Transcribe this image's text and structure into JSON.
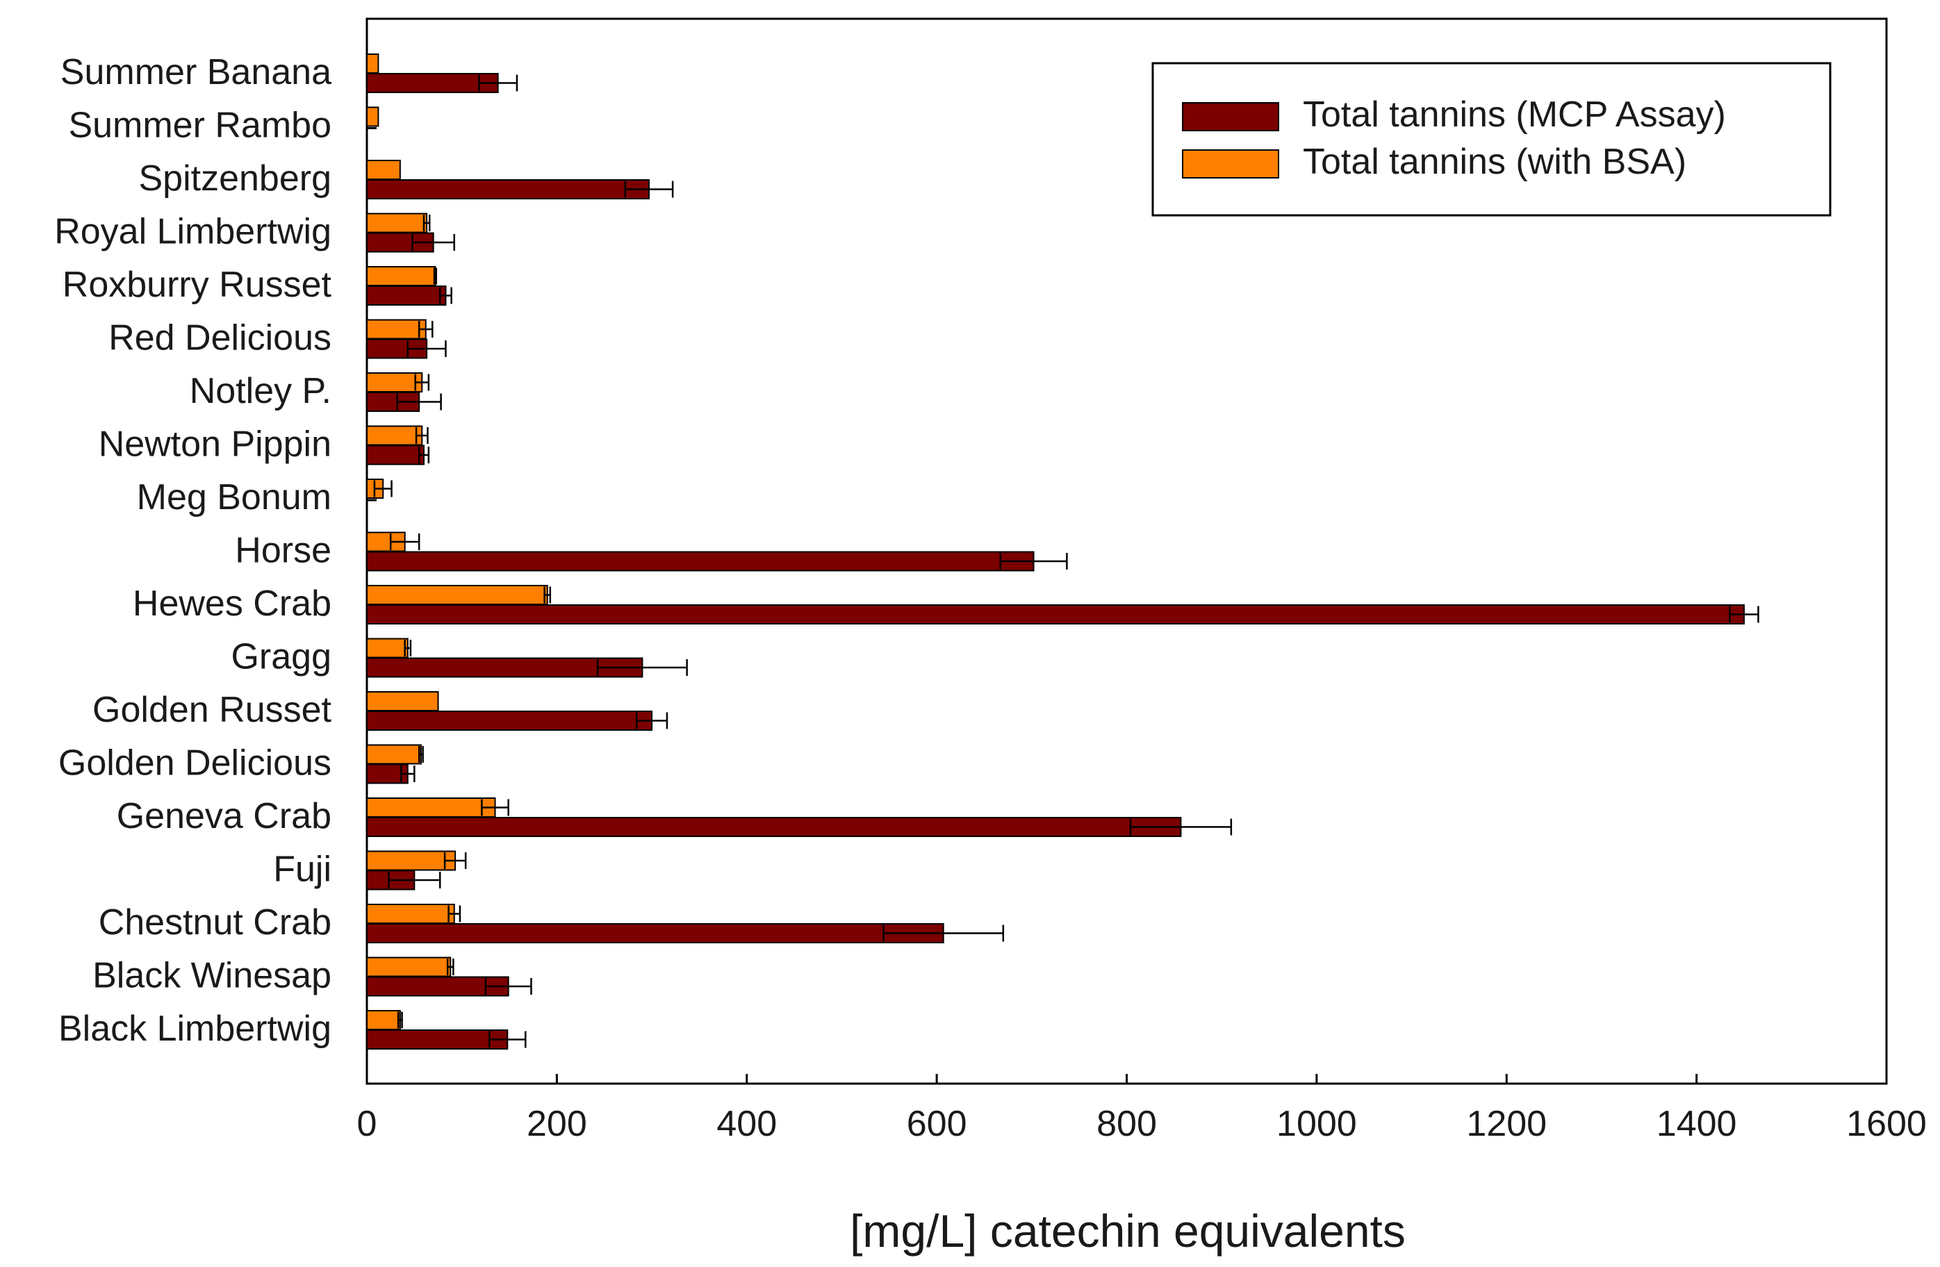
{
  "chart_data": {
    "type": "bar",
    "orientation": "horizontal",
    "title": "",
    "xlabel": "[mg/L] catechin equivalents",
    "ylabel": "",
    "xlim": [
      0,
      1600
    ],
    "xticks": [
      0,
      200,
      400,
      600,
      800,
      1000,
      1200,
      1400,
      1600
    ],
    "grid": false,
    "legend_position": "top-right",
    "categories": [
      "Summer Banana",
      "Summer Rambo",
      "Spitzenberg",
      "Royal Limbertwig",
      "Roxburry Russet",
      "Red Delicious",
      "Notley P.",
      "Newton Pippin",
      "Meg Bonum",
      "Horse",
      "Hewes Crab",
      "Gragg",
      "Golden Russet",
      "Golden Delicious",
      "Geneva Crab",
      "Fuji",
      "Chestnut Crab",
      "Black Winesap",
      "Black Limbertwig"
    ],
    "series": [
      {
        "name": "Total tannins (MCP Assay)",
        "color": "#7b0000",
        "values": [
          138,
          0,
          297,
          70,
          83,
          63,
          55,
          60,
          0,
          702,
          1450,
          290,
          300,
          43,
          857,
          50,
          607,
          149,
          148
        ],
        "errors": [
          20,
          0,
          25,
          22,
          6,
          20,
          23,
          5,
          0,
          35,
          15,
          47,
          16,
          7,
          53,
          27,
          63,
          24,
          19
        ]
      },
      {
        "name": "Total tannins (with BSA)",
        "color": "#ff8000",
        "values": [
          12,
          12,
          35,
          63,
          72,
          62,
          58,
          58,
          17,
          40,
          190,
          43,
          75,
          57,
          135,
          93,
          92,
          88,
          35
        ],
        "errors": [
          0,
          0,
          0,
          3,
          1,
          7,
          7,
          6,
          9,
          15,
          3,
          3,
          0,
          2,
          14,
          11,
          6,
          3,
          2
        ]
      }
    ]
  }
}
